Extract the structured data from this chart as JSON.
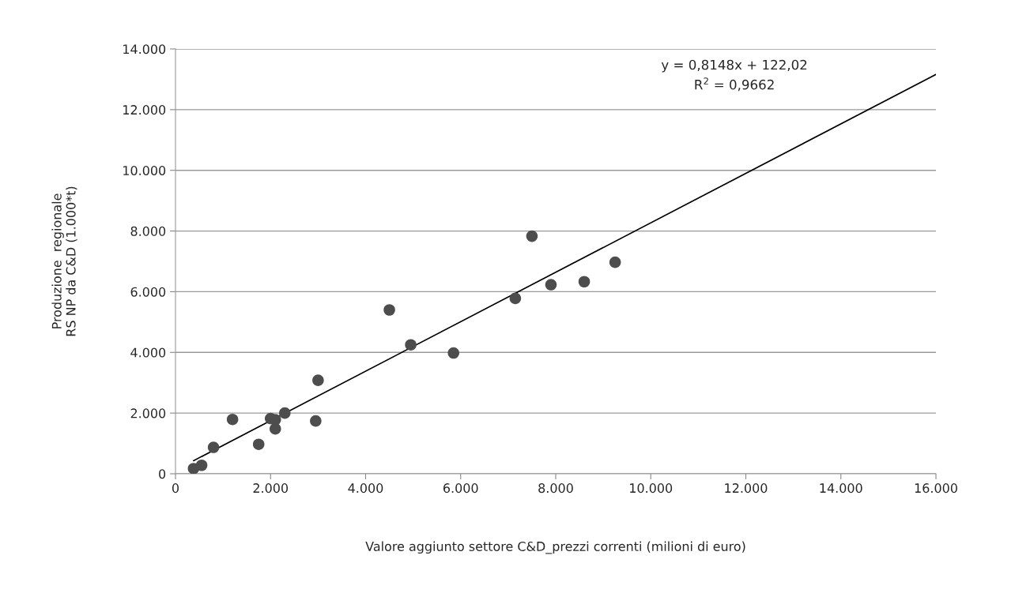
{
  "chart_data": {
    "type": "scatter",
    "xlabel": "Valore aggiunto settore C&D_prezzi correnti (milioni di euro)",
    "ylabel": "Produzione  regionale\nRS NP da C&D (1.000*t)",
    "series": [
      {
        "color": "#4d4d4d",
        "marker": "circle",
        "x": [
          380,
          550,
          800,
          1200,
          1750,
          2000,
          2100,
          2100,
          2300,
          2950,
          3000,
          4500,
          4950,
          5850,
          7150,
          7500,
          7900,
          8600,
          9250
        ],
        "values": [
          170,
          280,
          870,
          1790,
          970,
          1820,
          1780,
          1480,
          2000,
          1740,
          3080,
          5400,
          4250,
          3980,
          5780,
          7830,
          6230,
          6330,
          6970
        ]
      },
      {
        "type": "line",
        "color": "#000000",
        "marker": "none",
        "line_style": "solid",
        "x": [
          380,
          16000
        ],
        "values": [
          430,
          13160
        ]
      }
    ],
    "annotations": [
      "y = 0,8148x + 122,02",
      "R$^{2}$ = 0,9662"
    ],
    "xlim": [
      0,
      16000
    ],
    "xticks": [
      {
        "value": 0,
        "label": "0"
      },
      {
        "value": 2000,
        "label": "2.000"
      },
      {
        "value": 4000,
        "label": "4.000"
      },
      {
        "value": 6000,
        "label": "6.000"
      },
      {
        "value": 8000,
        "label": "8.000"
      },
      {
        "value": 10000,
        "label": "10.000"
      },
      {
        "value": 12000,
        "label": "12.000"
      },
      {
        "value": 14000,
        "label": "14.000"
      },
      {
        "value": 16000,
        "label": "16.000"
      }
    ],
    "ylim": [
      0,
      14000
    ],
    "yticks": [
      {
        "value": 0,
        "label": "0"
      },
      {
        "value": 2000,
        "label": "2.000"
      },
      {
        "value": 4000,
        "label": "4.000"
      },
      {
        "value": 6000,
        "label": "6.000"
      },
      {
        "value": 8000,
        "label": "8.000"
      },
      {
        "value": 10000,
        "label": "10.000"
      },
      {
        "value": 12000,
        "label": "12.000"
      },
      {
        "value": 14000,
        "label": "14.000"
      }
    ],
    "grid": "y",
    "legend": false
  }
}
